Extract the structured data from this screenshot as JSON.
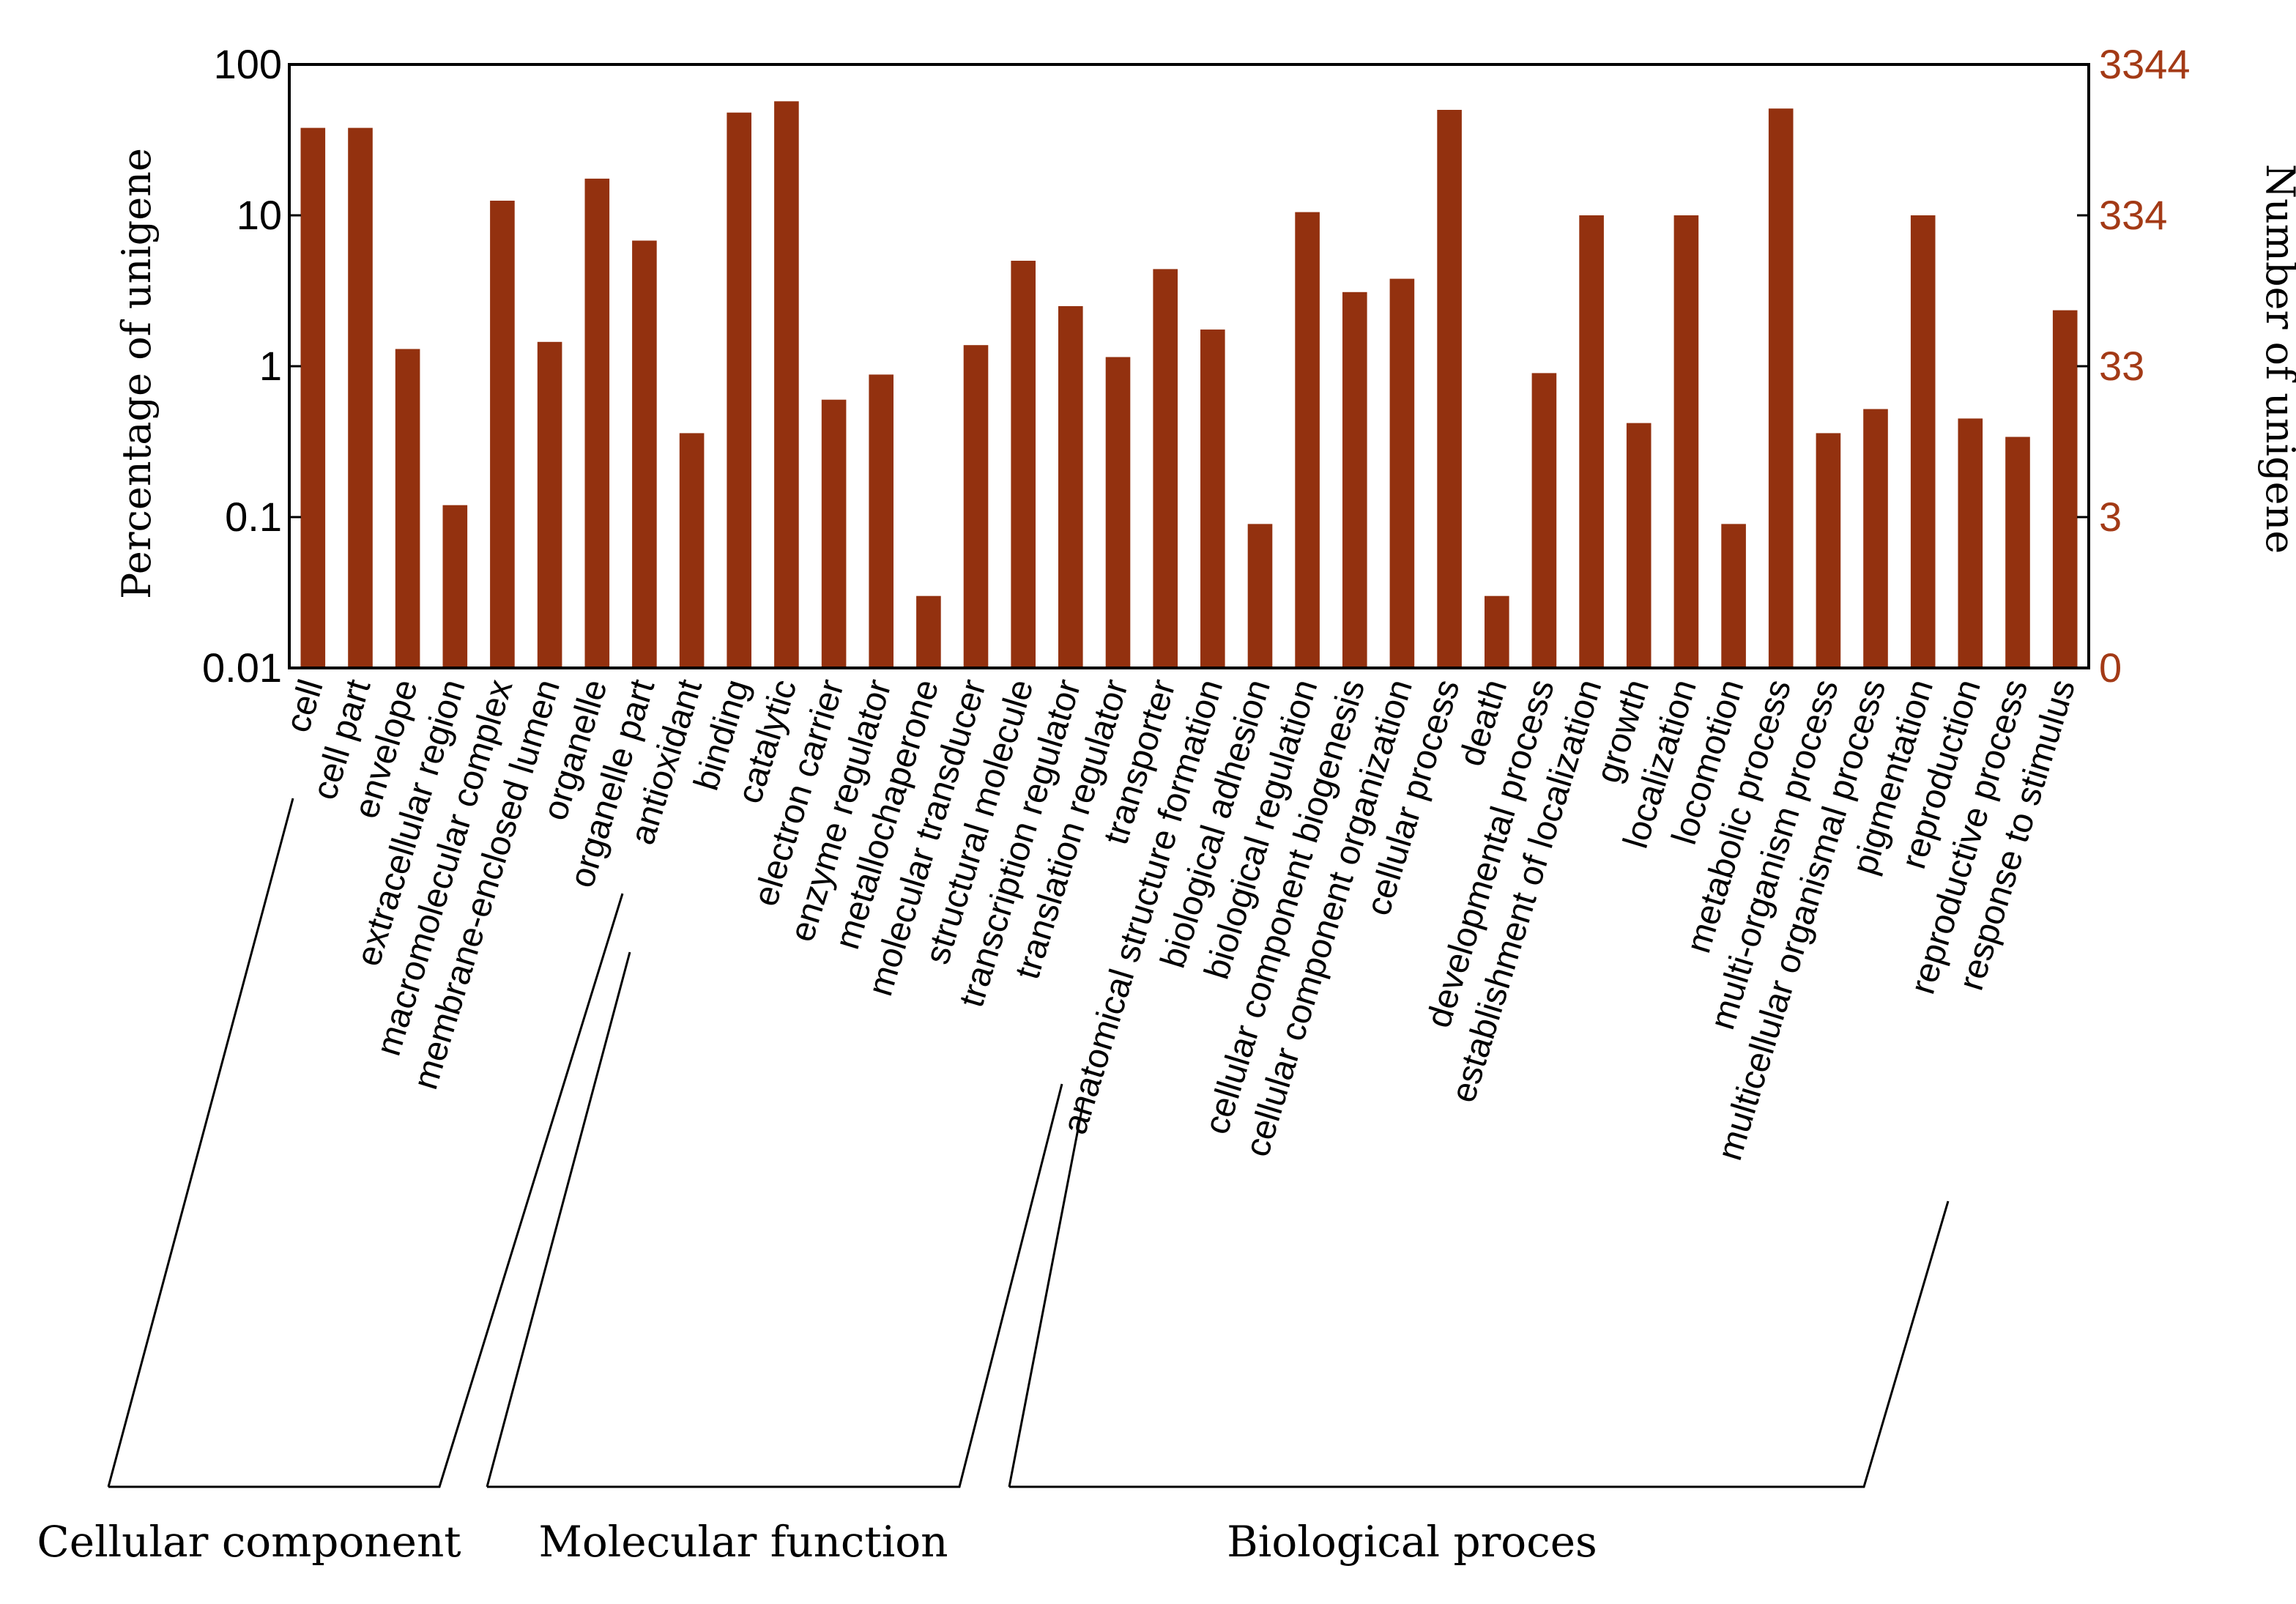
{
  "chart_data": {
    "type": "bar",
    "scale": "log",
    "ylabel_left": "Percentage of unigene",
    "ylabel_right": "Number of unigene",
    "left_ticks": [
      {
        "value": 0.01,
        "label": "0.01"
      },
      {
        "value": 0.1,
        "label": "0.1"
      },
      {
        "value": 1,
        "label": "1"
      },
      {
        "value": 10,
        "label": "10"
      },
      {
        "value": 100,
        "label": "100"
      }
    ],
    "right_ticks": [
      "0",
      "3",
      "33",
      "334",
      "3344"
    ],
    "ylim": [
      0.01,
      100
    ],
    "bar_color": "#93310f",
    "right_axis_color": "#a33a16",
    "categories": [
      "cell",
      "cell part",
      "envelope",
      "extracellular region",
      "macromolecular complex",
      "membrane-enclosed lumen",
      "organelle",
      "organelle part",
      "antioxidant",
      "binding",
      "catalytic",
      "electron carrier",
      "enzyme regulator",
      "metallochaperone",
      "molecular transducer",
      "structural molecule",
      "transcription regulator",
      "translation regulator",
      "transporter",
      "anatomical structure formation",
      "biological adhesion",
      "biological regulation",
      "cellular component biogenesis",
      "cellular component organization",
      "cellular process",
      "death",
      "developmental process",
      "establishment of localization",
      "growth",
      "localization",
      "locomotion",
      "metabolic process",
      "multi-organism process",
      "multicellular organismal process",
      "pigmentation",
      "reproduction",
      "reproductive process",
      "response to stimulus"
    ],
    "values": [
      38,
      38,
      1.3,
      0.12,
      12.5,
      1.45,
      17.5,
      6.8,
      0.36,
      48,
      57,
      0.6,
      0.88,
      0.03,
      1.38,
      5.0,
      2.5,
      1.15,
      4.4,
      1.75,
      0.09,
      10.5,
      3.1,
      3.8,
      50,
      0.03,
      0.9,
      10,
      0.42,
      10,
      0.09,
      51,
      0.36,
      0.52,
      10,
      0.45,
      0.34,
      2.35
    ],
    "groups": [
      {
        "name": "Cellular component",
        "start": 0,
        "end": 7
      },
      {
        "name": "Molecular function",
        "start": 8,
        "end": 18
      },
      {
        "name": "Biological proces",
        "start": 19,
        "end": 37
      }
    ]
  }
}
